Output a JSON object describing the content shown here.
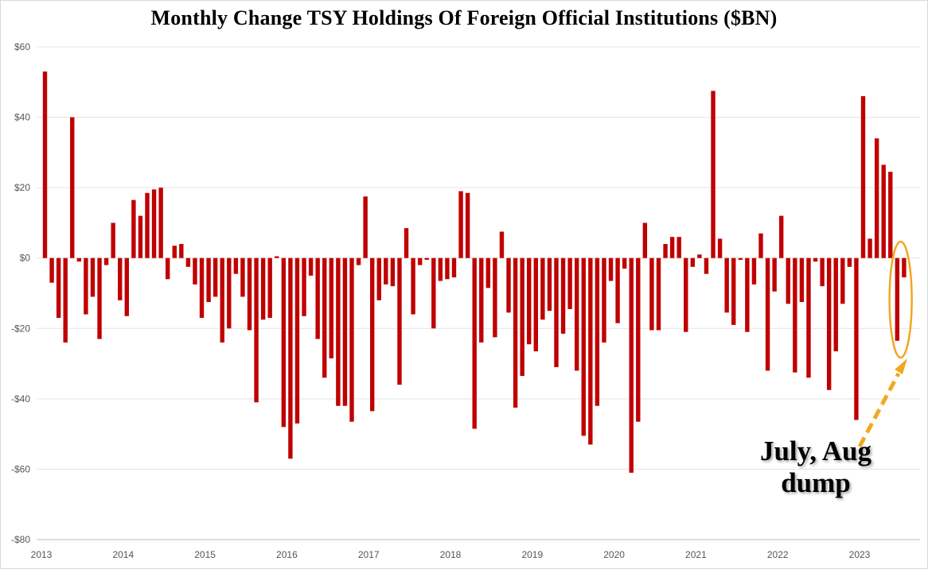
{
  "colors": {
    "bar": "#c00000",
    "grid": "#e3e3e3",
    "annotation": "#f0a820"
  },
  "annotation": {
    "line1": "July, Aug",
    "line2": "dump"
  },
  "chart_data": {
    "type": "bar",
    "title": "Monthly Change TSY Holdings Of Foreign Official Institutions ($BN)",
    "xlabel": "",
    "ylabel": "",
    "ylim": [
      -80,
      60
    ],
    "yticks": [
      60,
      40,
      20,
      0,
      -20,
      -40,
      -60,
      -80
    ],
    "ytick_labels": [
      "$60",
      "$40",
      "$20",
      "$0",
      "-$20",
      "-$40",
      "-$60",
      "-$80"
    ],
    "x_tick_labels": [
      "2013",
      "2014",
      "2015",
      "2016",
      "2017",
      "2018",
      "2019",
      "2020",
      "2021",
      "2022",
      "2023"
    ],
    "start": "2013-01",
    "grid": true,
    "legend": "none",
    "values": [
      53,
      -7,
      -17,
      -24,
      40,
      -1,
      -16,
      -11,
      -23,
      -2,
      10,
      -12,
      -16.5,
      16.5,
      12,
      18.5,
      19.5,
      20,
      -6,
      3.5,
      4,
      -2.5,
      -7.5,
      -17,
      -12.5,
      -11,
      -24,
      -20,
      -4.5,
      -11,
      -20.5,
      -41,
      -17.5,
      -17,
      0.5,
      -48,
      -57,
      -47,
      -16.5,
      -5,
      -23,
      -34,
      -28.5,
      -42,
      -42,
      -46.5,
      -2,
      17.5,
      -43.5,
      -12,
      -7.5,
      -8,
      -36,
      8.5,
      -16,
      -2,
      -0.5,
      -20,
      -6.5,
      -6,
      -5.5,
      19,
      18.5,
      -48.5,
      -24,
      -8.5,
      -22.5,
      7.5,
      -15.5,
      -42.5,
      -33.5,
      -24.5,
      -26.5,
      -17.5,
      -15,
      -31,
      -21.5,
      -14.5,
      -32,
      -50.5,
      -53,
      -42,
      -24,
      -6.5,
      -18.5,
      -3,
      -61,
      -46.5,
      10,
      -20.5,
      -20.5,
      4,
      6,
      6,
      -21,
      -2.5,
      1,
      -4.5,
      47.5,
      5.5,
      -15.5,
      -19,
      -0.5,
      -21,
      -7.5,
      7,
      -32,
      -9.5,
      12,
      -13,
      -32.5,
      -12.5,
      -34,
      -1,
      -8,
      -37.5,
      -26.5,
      -13,
      -2.5,
      -46,
      46,
      5.5,
      34,
      26.5,
      24.5,
      -23.5,
      -5.5
    ]
  }
}
